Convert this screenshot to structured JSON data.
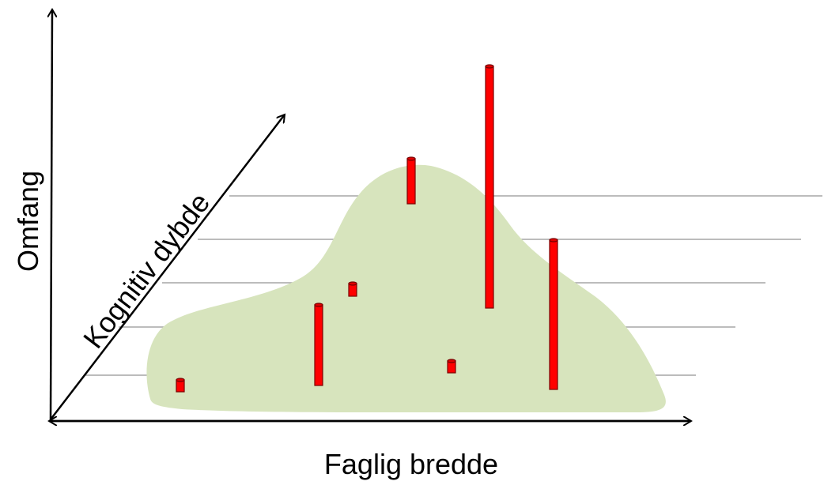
{
  "axes": {
    "vertical": "Omfang",
    "diagonal": "Kognitiv dybde",
    "horizontal": "Faglig bredde"
  }
}
